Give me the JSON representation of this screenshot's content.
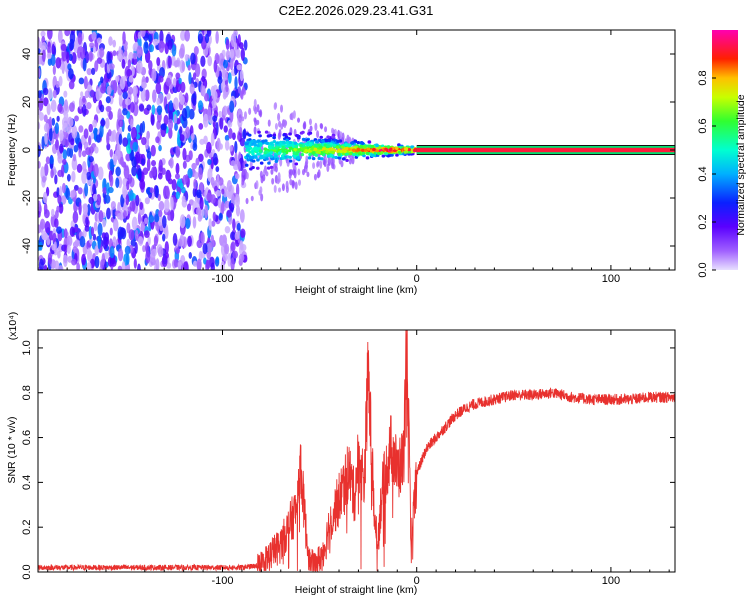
{
  "chart_data": [
    {
      "type": "heatmap",
      "title": "C2E2.2026.029.23.41.G31",
      "xlabel": "Height of straight line (km)",
      "ylabel": "Frequency (Hz)",
      "xlim": [
        -195,
        133
      ],
      "ylim": [
        -50,
        50
      ],
      "xticks": [
        -100,
        0,
        100
      ],
      "xtick_labels": [
        "-100",
        "0",
        "100"
      ],
      "yticks": [
        -40,
        -20,
        0,
        20,
        40
      ],
      "ytick_labels": [
        "-40",
        "-20",
        "0",
        "20",
        "40"
      ],
      "colorbar": {
        "label": "Normalized spectral amplitude",
        "range": [
          0,
          1
        ],
        "ticks": [
          0.0,
          0.2,
          0.4,
          0.6,
          0.8
        ],
        "tick_labels": [
          "0.0",
          "0.2",
          "0.4",
          "0.6",
          "0.8"
        ],
        "colors": [
          "#e6e6fa",
          "#7b00ff",
          "#2a00ff",
          "#0080ff",
          "#00ffff",
          "#00ff60",
          "#b4ff00",
          "#ffd200",
          "#ff0000",
          "#ff00a0"
        ]
      },
      "regions": [
        {
          "name": "noise",
          "x": [
            -195,
            -88
          ],
          "freq_spread": [
            -50,
            50
          ],
          "amplitude": 0.12
        },
        {
          "name": "transition",
          "x": [
            -88,
            0
          ],
          "freq_spread": [
            -8,
            8
          ],
          "amplitude": 0.5
        },
        {
          "name": "carrier",
          "x": [
            0,
            133
          ],
          "freq": 0,
          "amplitude": 0.95
        }
      ]
    },
    {
      "type": "line",
      "xlabel": "Height of straight line (km)",
      "ylabel": "SNR (10 * v/v)",
      "scale_label": "(x10⁴)",
      "xlim": [
        -195,
        133
      ],
      "ylim": [
        0,
        1.08
      ],
      "xticks": [
        -100,
        0,
        100
      ],
      "xtick_labels": [
        "-100",
        "0",
        "100"
      ],
      "yticks": [
        0.0,
        0.2,
        0.4,
        0.6,
        0.8,
        1.0
      ],
      "ytick_labels": [
        "0.0",
        "0.2",
        "0.4",
        "0.6",
        "0.8",
        "1.0"
      ],
      "series": [
        {
          "name": "SNR",
          "color": "#e8312e",
          "x": [
            -195,
            -170,
            -140,
            -110,
            -90,
            -80,
            -75,
            -70,
            -65,
            -62,
            -60,
            -57,
            -55,
            -52,
            -50,
            -47,
            -45,
            -42,
            -40,
            -37,
            -35,
            -32,
            -30,
            -27,
            -25,
            -22,
            -20,
            -18,
            -15,
            -13,
            -10,
            -7,
            -5,
            -3,
            0,
            5,
            10,
            15,
            20,
            25,
            30,
            40,
            50,
            60,
            70,
            80,
            90,
            100,
            110,
            120,
            133
          ],
          "values": [
            0.02,
            0.02,
            0.02,
            0.02,
            0.02,
            0.03,
            0.08,
            0.12,
            0.22,
            0.28,
            0.5,
            0.18,
            0.04,
            0.03,
            0.06,
            0.12,
            0.22,
            0.28,
            0.33,
            0.4,
            0.46,
            0.33,
            0.52,
            0.4,
            0.9,
            0.28,
            0.14,
            0.35,
            0.48,
            0.57,
            0.45,
            0.5,
            1.06,
            0.12,
            0.44,
            0.55,
            0.6,
            0.65,
            0.7,
            0.73,
            0.75,
            0.77,
            0.79,
            0.79,
            0.8,
            0.78,
            0.77,
            0.77,
            0.77,
            0.78,
            0.78
          ]
        }
      ]
    }
  ]
}
